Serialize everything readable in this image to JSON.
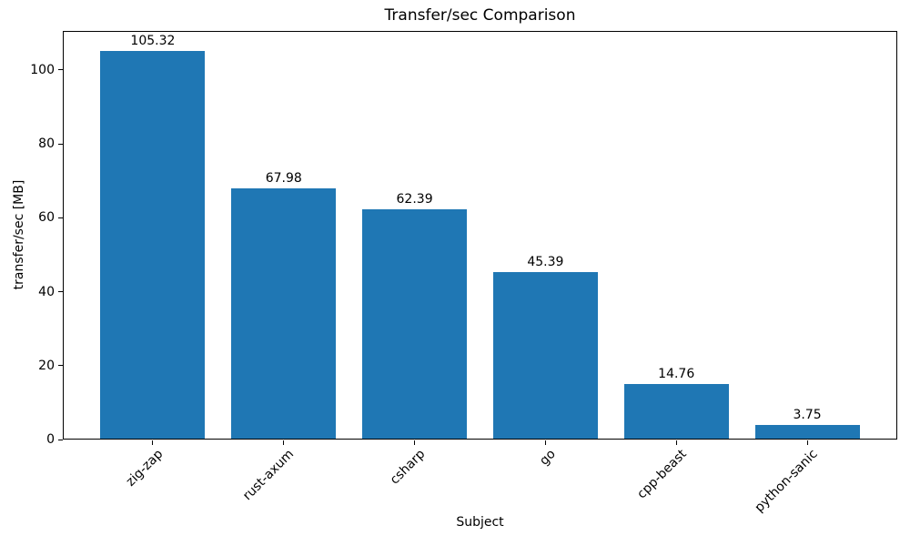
{
  "chart_data": {
    "type": "bar",
    "title": "Transfer/sec Comparison",
    "xlabel": "Subject",
    "ylabel": "transfer/sec [MB]",
    "categories": [
      "zig-zap",
      "rust-axum",
      "csharp",
      "go",
      "cpp-beast",
      "python-sanic"
    ],
    "values": [
      105.32,
      67.98,
      62.39,
      45.39,
      14.76,
      3.75
    ],
    "value_labels": [
      "105.32",
      "67.98",
      "62.39",
      "45.39",
      "14.76",
      "3.75"
    ],
    "y_ticks": [
      0,
      20,
      40,
      60,
      80,
      100
    ],
    "ylim": [
      0,
      110.59
    ],
    "bar_color": "#1f77b4",
    "axis_color": "#000000",
    "grid": false,
    "legend": null,
    "x_tick_rotation_deg": 45
  }
}
